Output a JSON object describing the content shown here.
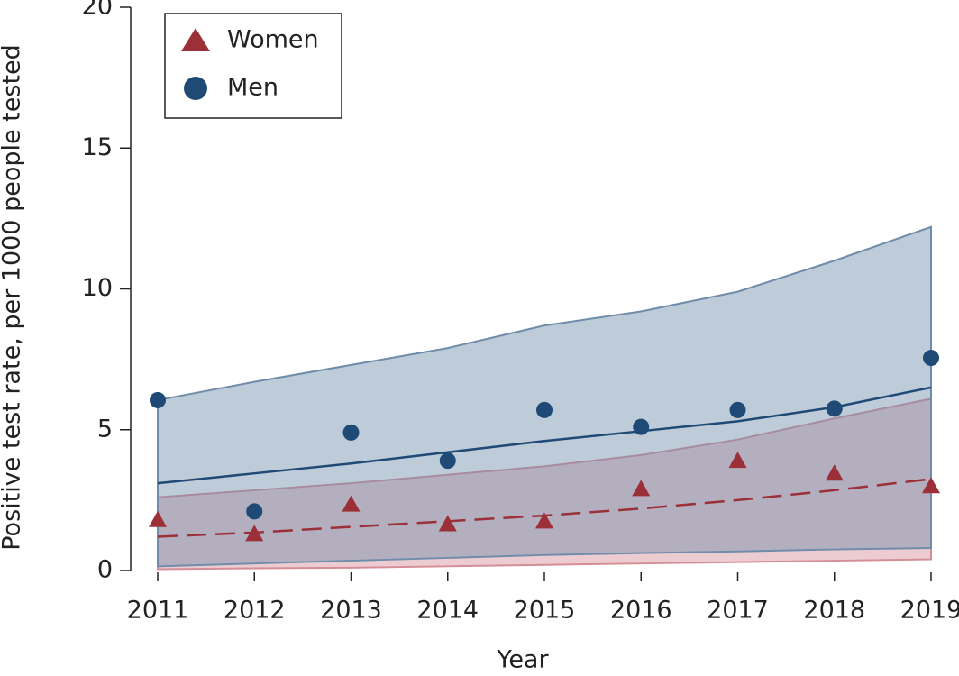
{
  "chart_data": {
    "type": "line",
    "x_label": "Year",
    "y_label": "Positive test rate, per 1000 people tested",
    "x": [
      2011,
      2012,
      2013,
      2014,
      2015,
      2016,
      2017,
      2018,
      2019
    ],
    "xlim": [
      2011,
      2019
    ],
    "xticks": [
      2011,
      2012,
      2013,
      2014,
      2015,
      2016,
      2017,
      2018,
      2019
    ],
    "ylim": [
      0,
      20
    ],
    "yticks": [
      0,
      5,
      10,
      15,
      20
    ],
    "legend": "upper-left",
    "series": [
      {
        "name": "Women",
        "color": "#9b3038",
        "marker": "triangle",
        "line_style": "dashed",
        "band_color": "#d58d96",
        "values": [
          1.8,
          1.3,
          2.35,
          1.65,
          1.75,
          2.9,
          3.9,
          3.45,
          3.0
        ],
        "trend": [
          1.2,
          1.35,
          1.55,
          1.75,
          1.95,
          2.2,
          2.5,
          2.85,
          3.25
        ],
        "upper": [
          2.6,
          2.85,
          3.1,
          3.4,
          3.7,
          4.1,
          4.65,
          5.4,
          6.1
        ],
        "lower": [
          0.05,
          0.08,
          0.1,
          0.15,
          0.2,
          0.25,
          0.3,
          0.35,
          0.4
        ]
      },
      {
        "name": "Men",
        "color": "#1f4a75",
        "marker": "circle",
        "line_style": "solid",
        "band_color": "#6f8cab",
        "values": [
          6.05,
          2.1,
          4.9,
          3.9,
          5.7,
          5.1,
          5.7,
          5.75,
          7.55
        ],
        "trend": [
          3.1,
          3.45,
          3.8,
          4.2,
          4.6,
          4.95,
          5.3,
          5.8,
          6.5
        ],
        "upper": [
          6.05,
          6.7,
          7.3,
          7.9,
          8.7,
          9.2,
          9.9,
          11.0,
          12.2
        ],
        "lower": [
          0.15,
          0.25,
          0.35,
          0.45,
          0.55,
          0.62,
          0.68,
          0.75,
          0.8
        ]
      }
    ]
  }
}
